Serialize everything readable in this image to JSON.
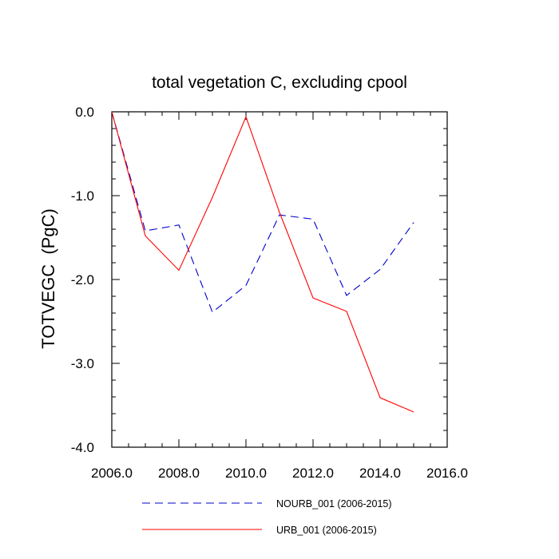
{
  "chart_data": {
    "type": "line",
    "title": "total vegetation C, excluding cpool",
    "xlabel": "",
    "ylabel": "TOTVEGC  (PgC)",
    "xlim": [
      2006,
      2016
    ],
    "ylim": [
      -4,
      0
    ],
    "xticks": [
      2006,
      2008,
      2010,
      2012,
      2014,
      2016
    ],
    "xtick_labels": [
      "2006.0",
      "2008.0",
      "2010.0",
      "2012.0",
      "2014.0",
      "2016.0"
    ],
    "yticks": [
      0,
      -1,
      -2,
      -3,
      -4
    ],
    "ytick_labels": [
      "0.0",
      "-1.0",
      "-2.0",
      "-3.0",
      "-4.0"
    ],
    "x": [
      2006,
      2007,
      2008,
      2009,
      2010,
      2011,
      2012,
      2013,
      2014,
      2015
    ],
    "series": [
      {
        "name": "NOURB_001 (2006-2015)",
        "color": "#0000cc",
        "style": "dashed",
        "values": [
          0.0,
          -1.42,
          -1.35,
          -2.39,
          -2.07,
          -1.23,
          -1.28,
          -2.19,
          -1.88,
          -1.32
        ]
      },
      {
        "name": "URB_001 (2006-2015)",
        "color": "#ff0000",
        "style": "solid",
        "values": [
          0.0,
          -1.48,
          -1.89,
          -1.02,
          -0.06,
          -1.2,
          -2.22,
          -2.38,
          -3.41,
          -3.58
        ]
      }
    ],
    "legend_position": "bottom",
    "grid": false
  }
}
